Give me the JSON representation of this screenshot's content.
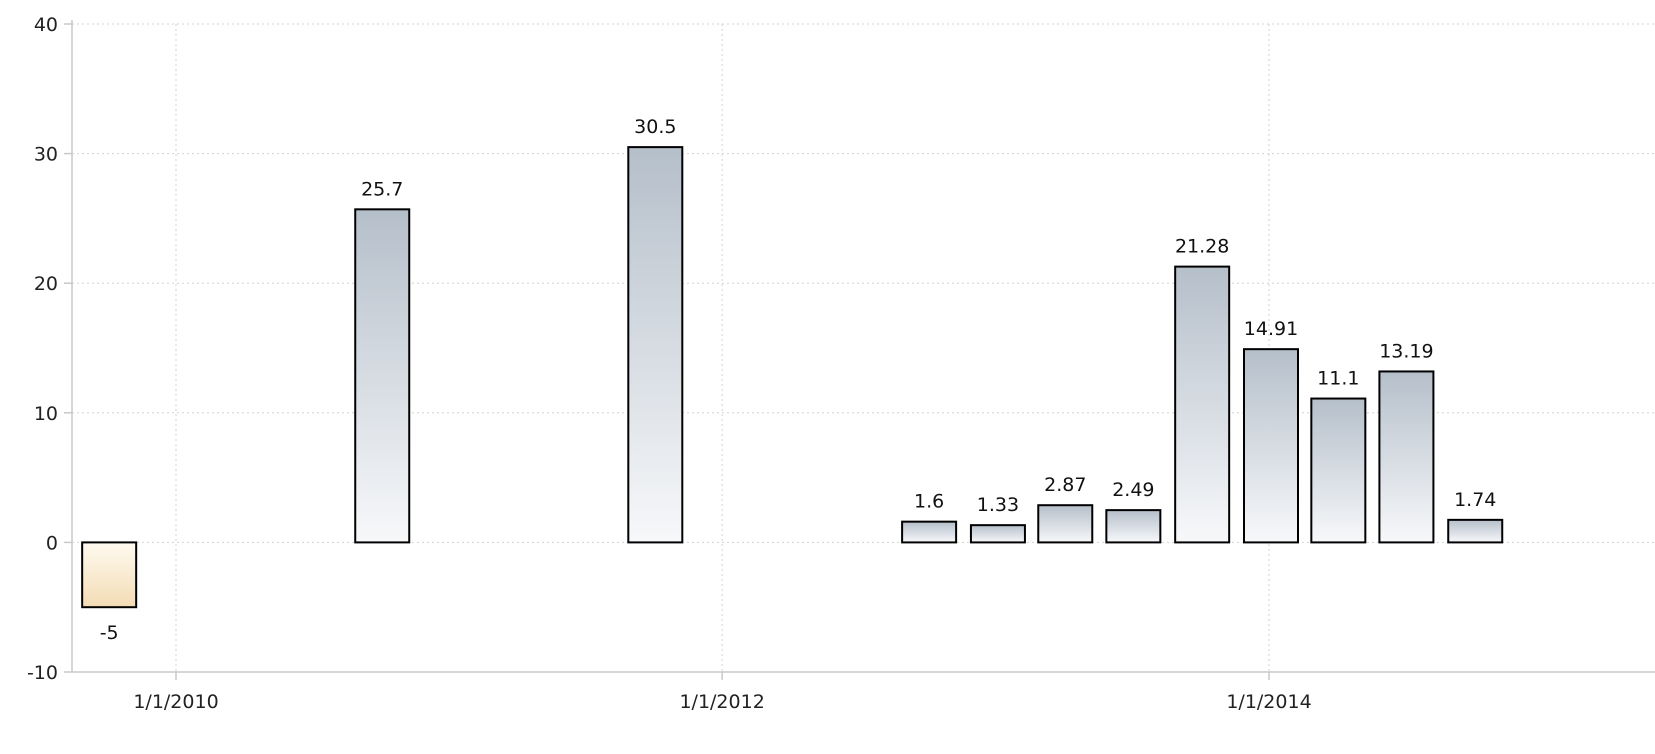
{
  "chart_data": {
    "type": "bar",
    "title": "",
    "xlabel": "",
    "ylabel": "",
    "ylim": [
      -10,
      40
    ],
    "yticks": [
      -10,
      0,
      10,
      20,
      30,
      40
    ],
    "xticks": [
      "1/1/2010",
      "1/1/2012",
      "1/1/2014"
    ],
    "grid": true,
    "bars": [
      {
        "date": "2009-10-01",
        "value": -5,
        "label": "-5"
      },
      {
        "date": "2010-10-01",
        "value": 25.7,
        "label": "25.7"
      },
      {
        "date": "2011-10-01",
        "value": 30.5,
        "label": "30.5"
      },
      {
        "date": "2012-10-01",
        "value": 1.6,
        "label": "1.6"
      },
      {
        "date": "2013-01-01",
        "value": 1.33,
        "label": "1.33"
      },
      {
        "date": "2013-04-01",
        "value": 2.87,
        "label": "2.87"
      },
      {
        "date": "2013-07-01",
        "value": 2.49,
        "label": "2.49"
      },
      {
        "date": "2013-10-01",
        "value": 21.28,
        "label": "21.28"
      },
      {
        "date": "2014-01-01",
        "value": 14.91,
        "label": "14.91"
      },
      {
        "date": "2014-04-01",
        "value": 11.1,
        "label": "11.1"
      },
      {
        "date": "2014-07-01",
        "value": 13.19,
        "label": "13.19"
      },
      {
        "date": "2014-10-01",
        "value": 1.74,
        "label": "1.74"
      }
    ],
    "colors": {
      "positive_top": "#b5bfca",
      "positive_bottom": "#f7f8fa",
      "negative_top": "#fffaf0",
      "negative_bottom": "#f3dcb4",
      "bar_outline": "#000000",
      "grid": "#d2d2d2"
    }
  }
}
